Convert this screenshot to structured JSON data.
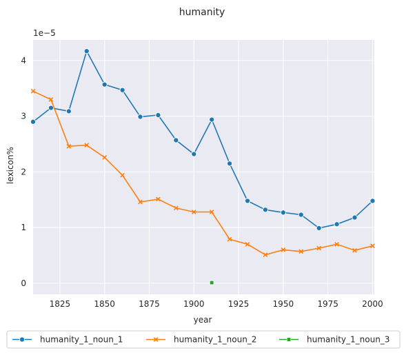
{
  "chart_data": {
    "type": "line",
    "title": "humanity",
    "xlabel": "year",
    "ylabel": "lexicon%",
    "y_scale_note": "1e−5",
    "xlim": [
      1810,
      2001
    ],
    "ylim": [
      -0.2,
      4.37
    ],
    "x_ticks": [
      1825,
      1850,
      1875,
      1900,
      1925,
      1950,
      1975,
      2000
    ],
    "x_tick_labels": [
      "1825",
      "1850",
      "1875",
      "1900",
      "1925",
      "1950",
      "1975",
      "2000"
    ],
    "y_ticks": [
      0,
      1,
      2,
      3,
      4
    ],
    "y_tick_labels": [
      "0",
      "1",
      "2",
      "3",
      "4"
    ],
    "grid": true,
    "legend_position": "bottom",
    "series": [
      {
        "name": "humanity_1_noun_1",
        "color": "#1f77b4",
        "marker": "circle",
        "points": [
          [
            1810,
            2.9
          ],
          [
            1820,
            3.15
          ],
          [
            1830,
            3.09
          ],
          [
            1840,
            4.17
          ],
          [
            1850,
            3.57
          ],
          [
            1860,
            3.47
          ],
          [
            1870,
            2.99
          ],
          [
            1880,
            3.02
          ],
          [
            1890,
            2.57
          ],
          [
            1900,
            2.32
          ],
          [
            1910,
            2.94
          ],
          [
            1920,
            2.15
          ],
          [
            1930,
            1.48
          ],
          [
            1940,
            1.32
          ],
          [
            1950,
            1.27
          ],
          [
            1960,
            1.23
          ],
          [
            1970,
            0.99
          ],
          [
            1980,
            1.06
          ],
          [
            1990,
            1.18
          ],
          [
            2000,
            1.48
          ]
        ]
      },
      {
        "name": "humanity_1_noun_2",
        "color": "#ff7f0e",
        "marker": "x",
        "points": [
          [
            1810,
            3.45
          ],
          [
            1820,
            3.3
          ],
          [
            1830,
            2.46
          ],
          [
            1840,
            2.48
          ],
          [
            1850,
            2.26
          ],
          [
            1860,
            1.94
          ],
          [
            1870,
            1.46
          ],
          [
            1880,
            1.51
          ],
          [
            1890,
            1.35
          ],
          [
            1900,
            1.28
          ],
          [
            1910,
            1.28
          ],
          [
            1920,
            0.79
          ],
          [
            1930,
            0.7
          ],
          [
            1940,
            0.51
          ],
          [
            1950,
            0.6
          ],
          [
            1960,
            0.57
          ],
          [
            1970,
            0.63
          ],
          [
            1980,
            0.7
          ],
          [
            1990,
            0.59
          ],
          [
            2000,
            0.67
          ]
        ]
      },
      {
        "name": "humanity_1_noun_3",
        "color": "#2ca02c",
        "marker": "square",
        "points": [
          [
            1910,
            0.01
          ]
        ]
      }
    ]
  }
}
